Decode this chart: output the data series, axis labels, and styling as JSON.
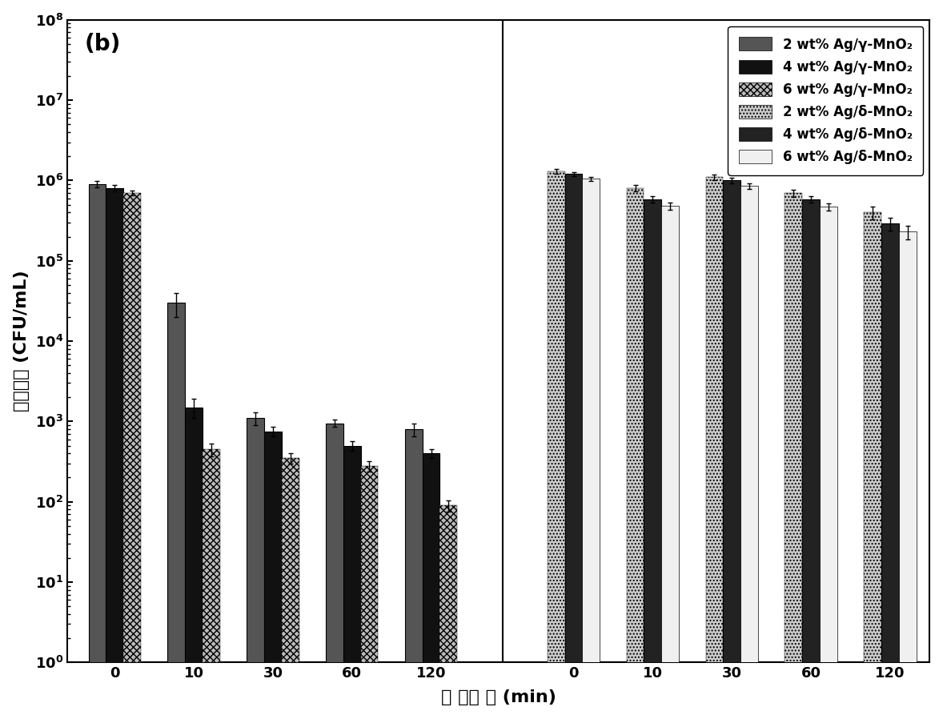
{
  "title_label": "(b)",
  "ylabel": "活细菌数 (CFU/mL)",
  "xlabel": "杀 菌时 间 (min)",
  "background_color": "#ffffff",
  "gamma_x_labels": [
    "0",
    "10",
    "30",
    "60",
    "120"
  ],
  "delta_x_labels": [
    "0",
    "10",
    "30",
    "60",
    "120"
  ],
  "gamma_data": {
    "2wt": [
      900000,
      30000,
      1100,
      950,
      800
    ],
    "4wt": [
      800000,
      1500,
      750,
      500,
      400
    ],
    "6wt": [
      700000,
      450,
      350,
      280,
      90
    ]
  },
  "gamma_err": {
    "2wt": [
      80000,
      10000,
      200,
      100,
      150
    ],
    "4wt": [
      70000,
      400,
      100,
      70,
      50
    ],
    "6wt": [
      55000,
      80,
      50,
      40,
      15
    ]
  },
  "delta_data": {
    "2wt": [
      1300000,
      800000,
      1100000,
      700000,
      400000
    ],
    "4wt": [
      1200000,
      580000,
      1000000,
      580000,
      290000
    ],
    "6wt": [
      1050000,
      480000,
      850000,
      470000,
      230000
    ]
  },
  "delta_err": {
    "2wt": [
      90000,
      70000,
      90000,
      70000,
      70000
    ],
    "4wt": [
      75000,
      55000,
      75000,
      55000,
      55000
    ],
    "6wt": [
      55000,
      45000,
      65000,
      45000,
      45000
    ]
  },
  "legend_labels": [
    "2 wt% Ag/γ-MnO₂",
    "4 wt% Ag/γ-MnO₂",
    "6 wt% Ag/γ-MnO₂",
    "2 wt% Ag/δ-MnO₂",
    "4 wt% Ag/δ-MnO₂",
    "6 wt% Ag/δ-MnO₂"
  ]
}
